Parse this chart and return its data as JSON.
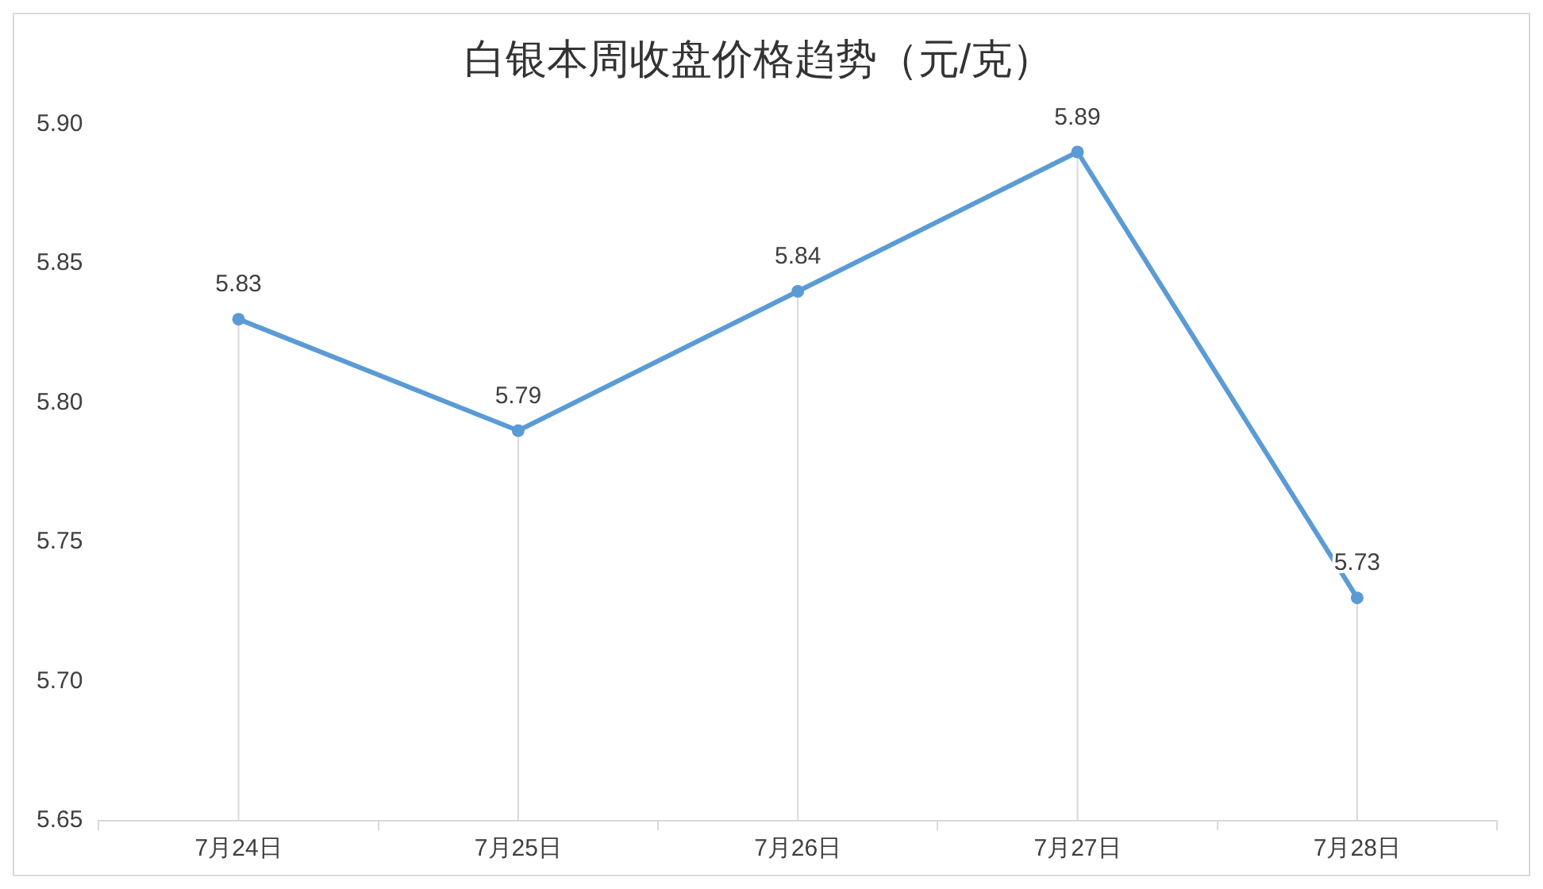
{
  "chart_data": {
    "type": "line",
    "title": "白银本周收盘价格趋势（元/克）",
    "categories": [
      "7月24日",
      "7月25日",
      "7月26日",
      "7月27日",
      "7月28日"
    ],
    "series": [
      {
        "color": "#5b9bd5",
        "values": [
          5.83,
          5.79,
          5.84,
          5.89,
          5.73
        ]
      }
    ],
    "ylim": [
      5.65,
      5.9
    ],
    "yticks": [
      {
        "value": 5.65,
        "label": "5.65"
      },
      {
        "value": 5.7,
        "label": "5.70"
      },
      {
        "value": 5.75,
        "label": "5.75"
      },
      {
        "value": 5.8,
        "label": "5.80"
      },
      {
        "value": 5.85,
        "label": "5.85"
      },
      {
        "value": 5.9,
        "label": "5.90"
      }
    ],
    "grid": "x",
    "legend": false,
    "marker": "circle",
    "line_style": "solid",
    "data_labels": true
  }
}
